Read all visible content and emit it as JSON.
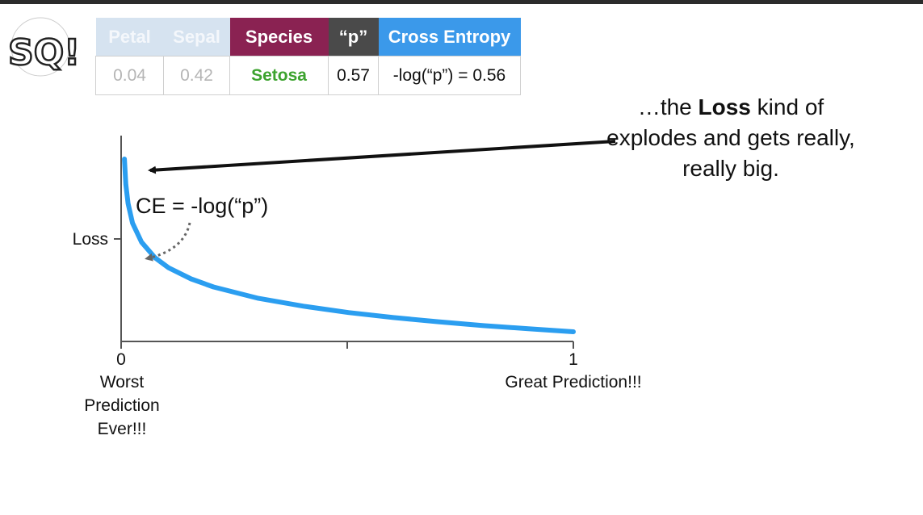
{
  "table": {
    "headers": [
      "Petal",
      "Sepal",
      "Species",
      "“p”",
      "Cross Entropy"
    ],
    "row": [
      "0.04",
      "0.42",
      "Setosa",
      "0.57",
      "-log(“p”) = 0.56"
    ]
  },
  "annotation": {
    "pre": "…the ",
    "bold": "Loss",
    "post": " kind of explodes and gets really, really big."
  },
  "formula": "CE = -log(“p”)",
  "chart_data": {
    "type": "line",
    "function": "-log(p)",
    "xlabel_left": "Worst Prediction Ever!!!",
    "xlabel_right": "Great Prediction!!!",
    "ylabel": "Loss",
    "x_ticks": [
      "0",
      "1"
    ],
    "xlim": [
      0,
      1
    ],
    "series": [
      {
        "color": "#2b9ef0",
        "x": [
          0.002,
          0.005,
          0.01,
          0.02,
          0.04,
          0.07,
          0.1,
          0.15,
          0.2,
          0.3,
          0.4,
          0.5,
          0.6,
          0.7,
          0.8,
          0.9,
          1.0
        ],
        "y": [
          6.21,
          5.3,
          4.61,
          3.91,
          3.22,
          2.66,
          2.3,
          1.9,
          1.61,
          1.2,
          0.92,
          0.69,
          0.51,
          0.36,
          0.22,
          0.11,
          0.0
        ]
      }
    ]
  }
}
